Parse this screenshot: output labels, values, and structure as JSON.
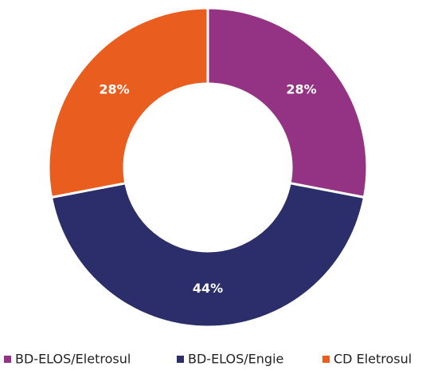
{
  "chart_data": {
    "type": "donut",
    "categories": [
      "BD-ELOS/Eletrosul",
      "BD-ELOS/Engie",
      "CD Eletrosul"
    ],
    "values": [
      28,
      44,
      28
    ],
    "value_labels": [
      "28%",
      "44%",
      "28%"
    ],
    "colors": [
      "#943384",
      "#2b2e6b",
      "#e95d1e"
    ],
    "legend": "bottom"
  }
}
